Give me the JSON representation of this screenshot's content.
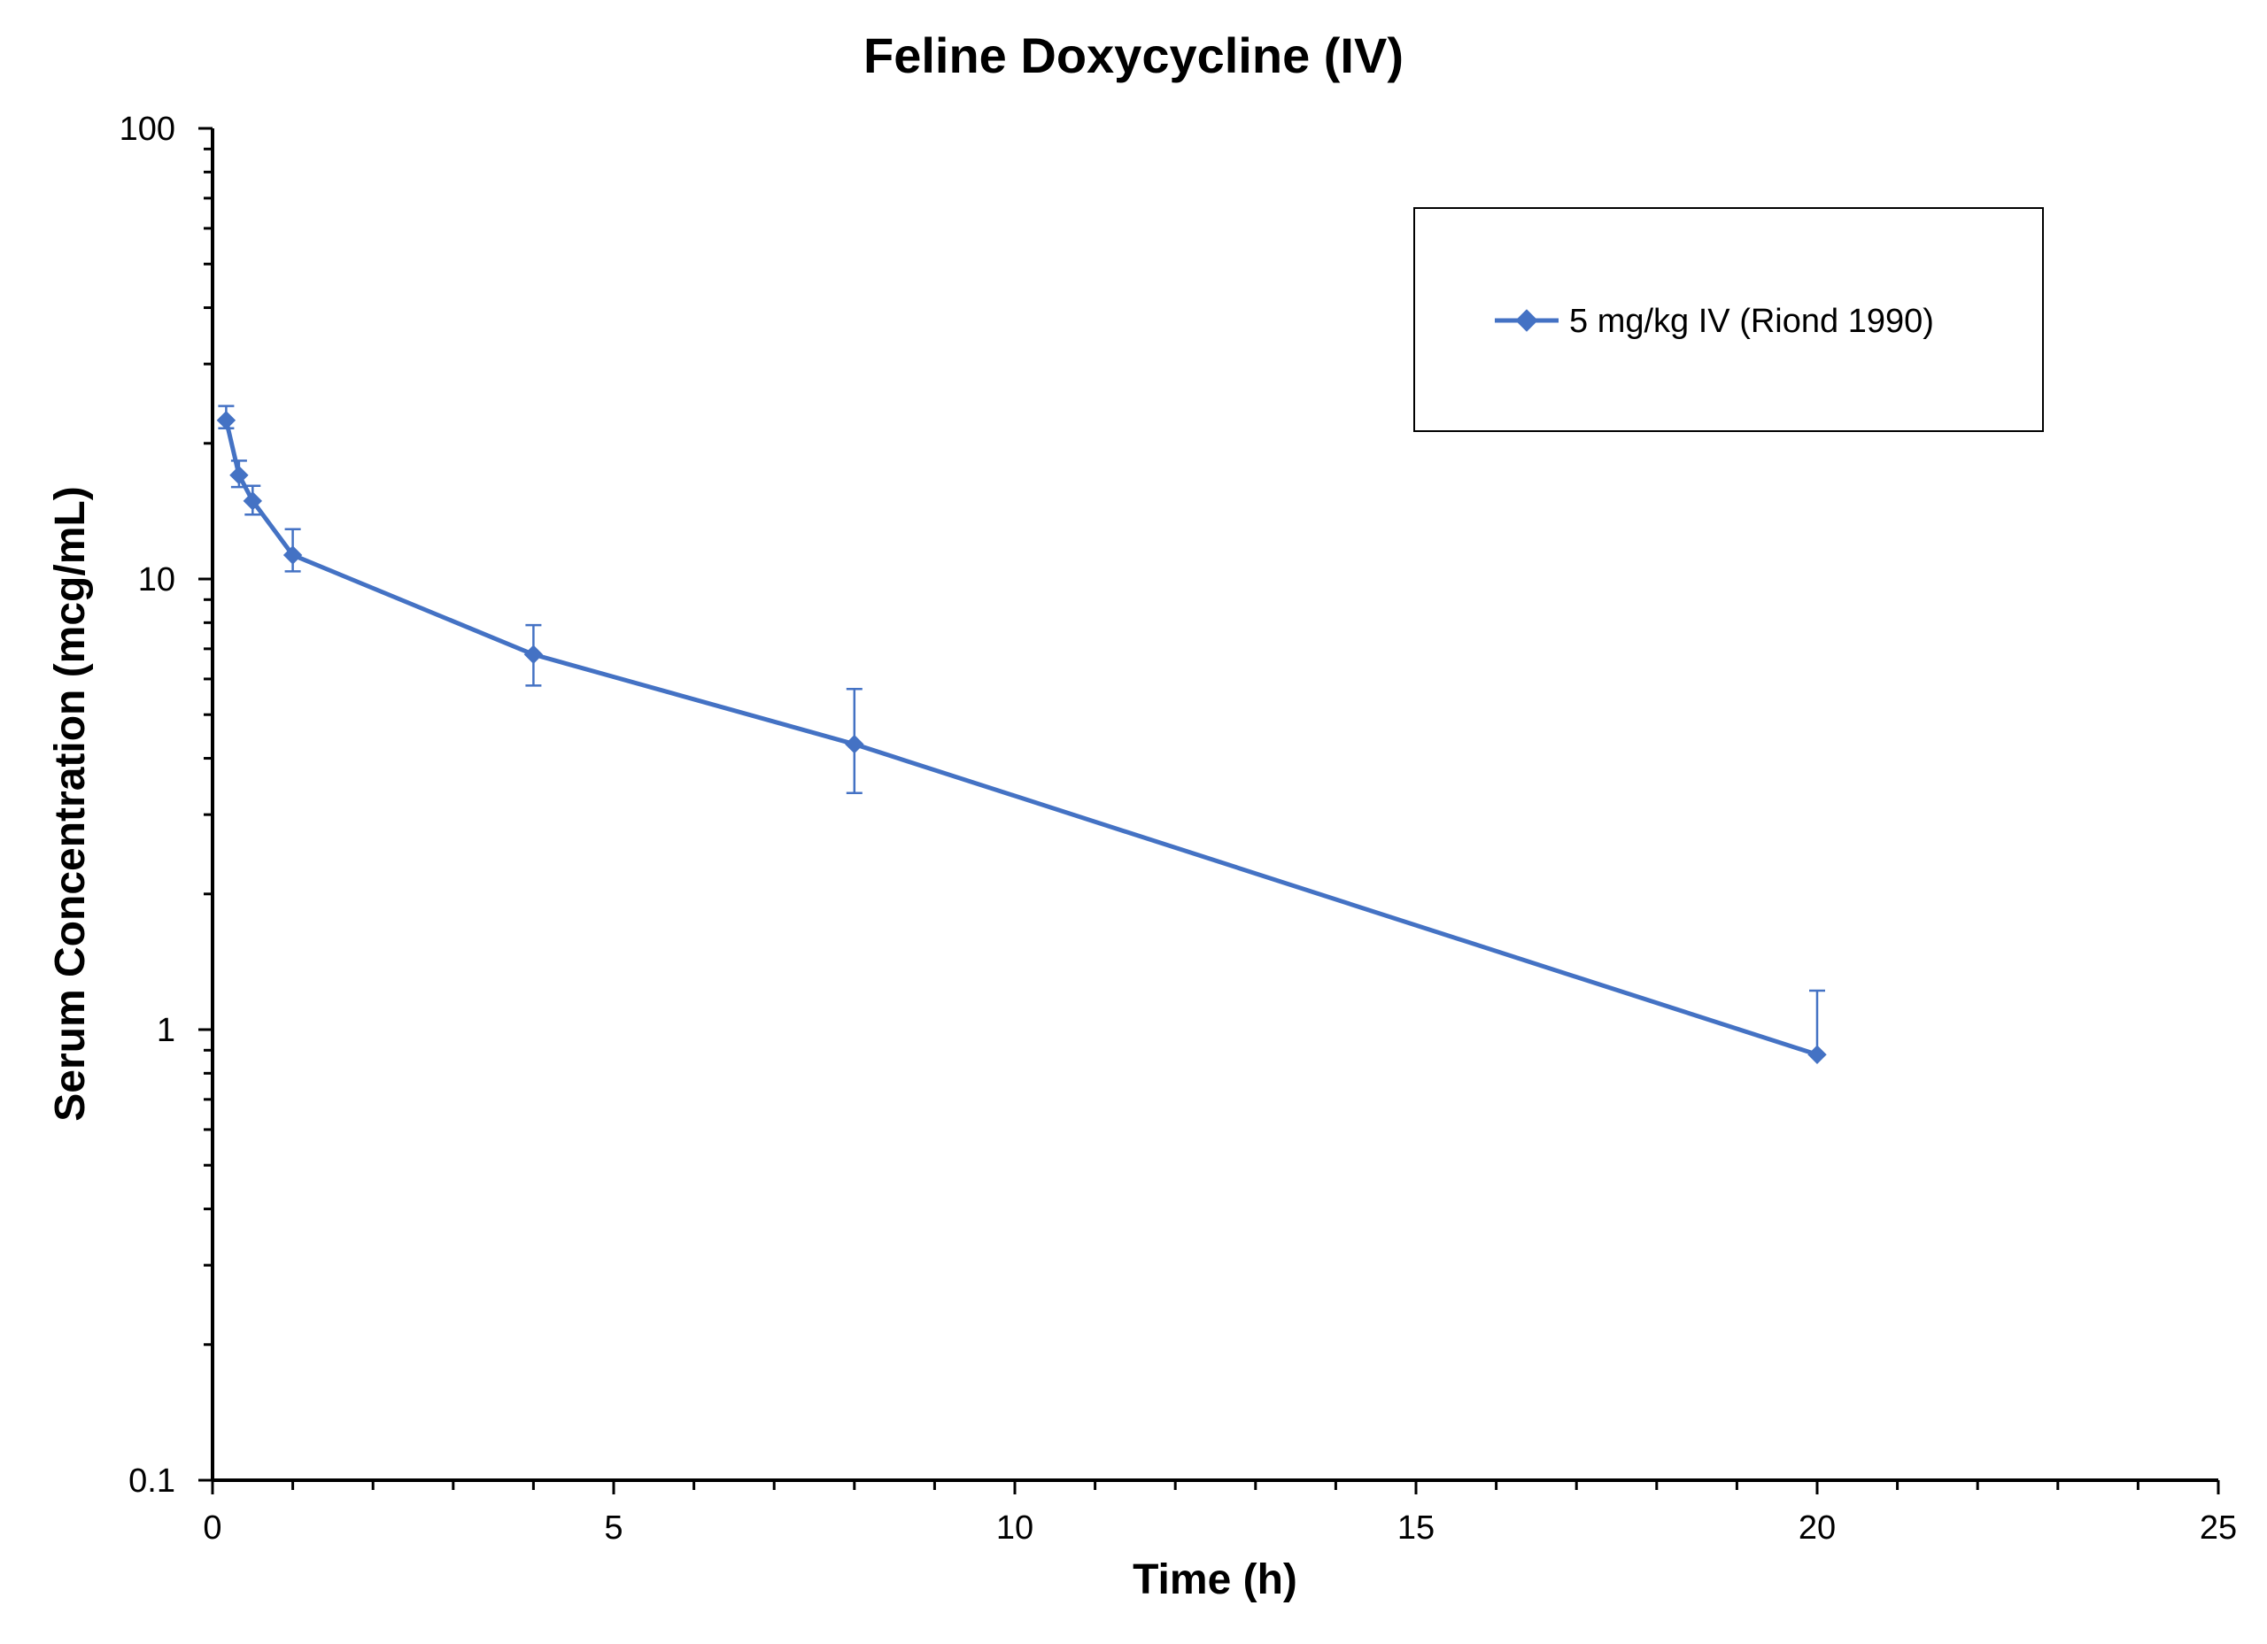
{
  "chart_data": {
    "type": "line",
    "title": "Feline Doxycycline (IV)",
    "xlabel": "Time (h)",
    "ylabel": "Serum Concentration (mcg/mL)",
    "xlim": [
      0,
      25
    ],
    "ylim": [
      0.1,
      100
    ],
    "yscale": "log",
    "x_ticks": [
      "0",
      "5",
      "10",
      "15",
      "20",
      "25"
    ],
    "y_ticks": [
      "0.1",
      "1",
      "10",
      "100"
    ],
    "grid": false,
    "legend_position": "top-right",
    "series": [
      {
        "name": "5 mg/kg IV (Riond 1990)",
        "color": "#4472C4",
        "marker": "diamond",
        "points": [
          {
            "x": 0.17,
            "y": 22.5,
            "err_low": 21.6,
            "err_high": 24.2
          },
          {
            "x": 0.33,
            "y": 17.0,
            "err_low": 16.0,
            "err_high": 18.3
          },
          {
            "x": 0.5,
            "y": 14.9,
            "err_low": 13.9,
            "err_high": 16.1
          },
          {
            "x": 1,
            "y": 11.3,
            "err_low": 10.4,
            "err_high": 12.9
          },
          {
            "x": 4,
            "y": 6.8,
            "err_low": 5.8,
            "err_high": 7.9
          },
          {
            "x": 8,
            "y": 4.3,
            "err_low": 3.35,
            "err_high": 5.7
          },
          {
            "x": 20,
            "y": 0.88,
            "err_low": null,
            "err_high": 1.22
          }
        ]
      }
    ]
  }
}
